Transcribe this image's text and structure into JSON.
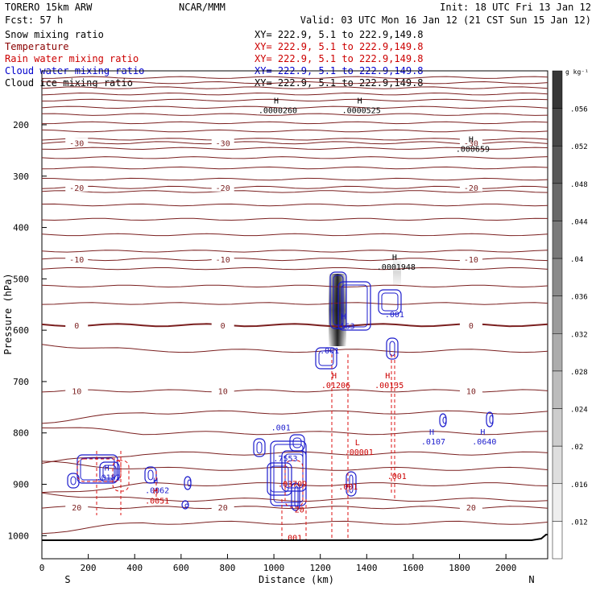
{
  "header": {
    "model": "TORERO  15km ARW",
    "org": "NCAR/MMM",
    "init": "Init: 18 UTC Fri 13 Jan 12",
    "fcst": "Fcst:   57 h",
    "valid": "Valid: 03 UTC Mon 16 Jan 12 (21 CST Sun 15 Jan 12)"
  },
  "legend": [
    {
      "name": "Snow mixing ratio",
      "xy": "XY= 222.9,  5.1 to 222.9,149.8",
      "color": "#000000"
    },
    {
      "name": "Temperature",
      "xy": "XY= 222.9,  5.1 to 222.9,149.8",
      "color": "#8b0000"
    },
    {
      "name": "Rain water mixing ratio",
      "xy": "XY= 222.9,  5.1 to 222.9,149.8",
      "color": "#cc0000"
    },
    {
      "name": "Cloud water mixing ratio",
      "xy": "XY= 222.9,  5.1 to 222.9,149.8",
      "color": "#0000cc"
    },
    {
      "name": "Cloud ice mixing ratio",
      "xy": "XY= 222.9,  5.1 to 222.9,149.8",
      "color": "#000000"
    }
  ],
  "colorbar": {
    "unit": "g kg⁻¹",
    "ticks": [
      ".012",
      ".016",
      ".02",
      ".024",
      ".028",
      ".032",
      ".036",
      ".04",
      ".044",
      ".048",
      ".052",
      ".056"
    ]
  },
  "chart_data": {
    "type": "cross-section",
    "xlabel": "Distance (km)",
    "ylabel": "Pressure (hPa)",
    "xlim": [
      0,
      2180
    ],
    "ylim": [
      1045,
      95
    ],
    "xticks": [
      0,
      200,
      400,
      600,
      800,
      1000,
      1200,
      1400,
      1600,
      1800,
      2000
    ],
    "yticks": [
      200,
      300,
      400,
      500,
      600,
      700,
      800,
      900,
      1000
    ],
    "endpoints": {
      "left": "S",
      "right": "N"
    },
    "temperature_isotherms": [
      {
        "value": -30,
        "label": "-30",
        "pressure": 235
      },
      {
        "value": -20,
        "label": "-20",
        "pressure": 322
      },
      {
        "value": -10,
        "label": "-10",
        "pressure": 462
      },
      {
        "value": 0,
        "label": "0",
        "pressure": 590
      },
      {
        "value": 10,
        "label": "10",
        "pressure": 718
      },
      {
        "value": 20,
        "label": "20",
        "pressure": 945
      }
    ],
    "extrema": [
      {
        "type": "H",
        "value": ".0000260",
        "x": 1010,
        "p": 165,
        "field": "snow"
      },
      {
        "type": "H",
        "value": ".0000525",
        "x": 1370,
        "p": 165,
        "field": "snow"
      },
      {
        "type": "H",
        "value": ".000659",
        "x": 1850,
        "p": 240,
        "field": "snow"
      },
      {
        "type": "H",
        "value": ".0001948",
        "x": 1520,
        "p": 470,
        "field": "snow"
      },
      {
        "type": "H",
        "value": ".01206",
        "x": 1260,
        "p": 700,
        "field": "rain"
      },
      {
        "type": "H",
        "value": ".00135",
        "x": 1490,
        "p": 700,
        "field": "rain"
      },
      {
        "type": "L",
        "value": ".00001",
        "x": 1360,
        "p": 830,
        "field": "rain"
      },
      {
        "type": "H",
        "value": ".0107",
        "x": 1680,
        "p": 810,
        "field": "cloud"
      },
      {
        "type": "H",
        "value": ".0640",
        "x": 1900,
        "p": 810,
        "field": "cloud"
      },
      {
        "type": "H",
        "value": ".0182",
        "x": 280,
        "p": 880,
        "field": "cloud"
      },
      {
        "type": "H",
        "value": ".0062",
        "x": 490,
        "p": 905,
        "field": "cloud"
      },
      {
        "type": "H",
        "value": ".0051",
        "x": 490,
        "p": 925,
        "field": "rain"
      },
      {
        "type": "H",
        "value": ".163",
        "x": 1300,
        "p": 585,
        "field": "cloud"
      }
    ],
    "cloud_labels": [
      {
        "label": ".001",
        "x": 1030,
        "p": 795
      },
      {
        "label": ".7553",
        "x": 1050,
        "p": 855
      },
      {
        "label": ".001",
        "x": 1240,
        "p": 645
      },
      {
        "label": ".001",
        "x": 1520,
        "p": 575
      }
    ],
    "rain_labels": [
      {
        "label": ".03709",
        "x": 1080,
        "p": 905
      },
      {
        "label": ".001",
        "x": 1320,
        "p": 910
      },
      {
        "label": ".001",
        "x": 1080,
        "p": 1010
      },
      {
        "label": ".001",
        "x": 1530,
        "p": 890
      },
      {
        "label": "20",
        "x": 1110,
        "p": 955
      }
    ]
  }
}
